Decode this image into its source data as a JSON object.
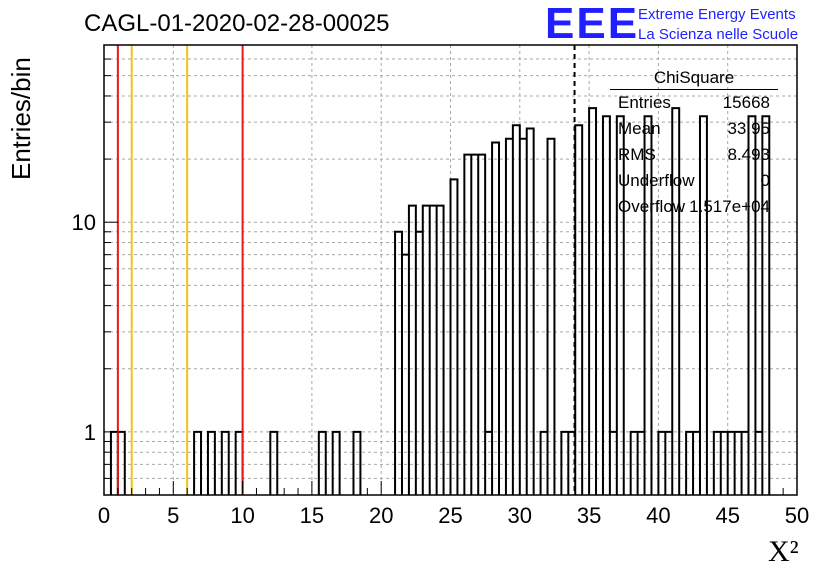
{
  "header": {
    "title": "CAGL-01-2020-02-28-00025"
  },
  "brand": {
    "logo": "EEE",
    "line1": "Extreme Energy Events",
    "line2": "La Scienza nelle Scuole"
  },
  "stats": {
    "title": "ChiSquare",
    "rows": [
      {
        "name": "Entries",
        "value": "15668"
      },
      {
        "name": "Mean",
        "value": "33.95"
      },
      {
        "name": "RMS",
        "value": "8.493"
      },
      {
        "name": "Underflow",
        "value": "0"
      },
      {
        "name": "Overflow",
        "value": "1.517e+04"
      }
    ]
  },
  "colors": {
    "red_lines": "#e8191b",
    "yellow_lines": "#f2c314",
    "histogram": "#000000",
    "grid": "#a8a8a8"
  },
  "chart_data": {
    "type": "histogram",
    "xlabel": "X²",
    "ylabel": "Entries/bin",
    "xlim": [
      0,
      50
    ],
    "ylim": [
      0.5,
      70
    ],
    "yscale": "log",
    "grid": true,
    "xticks": [
      "0",
      "5",
      "10",
      "15",
      "20",
      "25",
      "30",
      "35",
      "40",
      "45",
      "50"
    ],
    "yticks": [
      {
        "value": 1,
        "label": "1"
      },
      {
        "value": 10,
        "label": "10"
      }
    ],
    "bin_width": 0.5,
    "bins": [
      {
        "x": 0.5,
        "y": 1
      },
      {
        "x": 1.0,
        "y": 1
      },
      {
        "x": 6.5,
        "y": 1
      },
      {
        "x": 7.5,
        "y": 1
      },
      {
        "x": 8.5,
        "y": 1
      },
      {
        "x": 9.5,
        "y": 1
      },
      {
        "x": 12.0,
        "y": 1
      },
      {
        "x": 15.5,
        "y": 1
      },
      {
        "x": 16.5,
        "y": 1
      },
      {
        "x": 18.0,
        "y": 1
      },
      {
        "x": 21.0,
        "y": 9
      },
      {
        "x": 21.5,
        "y": 7
      },
      {
        "x": 22.0,
        "y": 12
      },
      {
        "x": 22.5,
        "y": 9
      },
      {
        "x": 23.0,
        "y": 12
      },
      {
        "x": 23.5,
        "y": 12
      },
      {
        "x": 24.0,
        "y": 12
      },
      {
        "x": 25.0,
        "y": 16
      },
      {
        "x": 26.0,
        "y": 21
      },
      {
        "x": 26.5,
        "y": 21
      },
      {
        "x": 27.0,
        "y": 21
      },
      {
        "x": 27.5,
        "y": 1
      },
      {
        "x": 28.0,
        "y": 24
      },
      {
        "x": 29.0,
        "y": 25
      },
      {
        "x": 29.5,
        "y": 29
      },
      {
        "x": 30.0,
        "y": 25
      },
      {
        "x": 30.5,
        "y": 28
      },
      {
        "x": 31.5,
        "y": 1
      },
      {
        "x": 32.0,
        "y": 25
      },
      {
        "x": 33.0,
        "y": 1
      },
      {
        "x": 33.5,
        "y": 1
      },
      {
        "x": 34.0,
        "y": 29
      },
      {
        "x": 35.0,
        "y": 35
      },
      {
        "x": 36.0,
        "y": 32
      },
      {
        "x": 36.5,
        "y": 1
      },
      {
        "x": 37.0,
        "y": 32
      },
      {
        "x": 38.0,
        "y": 1
      },
      {
        "x": 38.5,
        "y": 1
      },
      {
        "x": 39.0,
        "y": 32
      },
      {
        "x": 40.0,
        "y": 1
      },
      {
        "x": 40.5,
        "y": 1
      },
      {
        "x": 41.0,
        "y": 35
      },
      {
        "x": 42.0,
        "y": 1
      },
      {
        "x": 42.5,
        "y": 1
      },
      {
        "x": 43.0,
        "y": 32
      },
      {
        "x": 44.0,
        "y": 1
      },
      {
        "x": 44.5,
        "y": 1
      },
      {
        "x": 45.0,
        "y": 1
      },
      {
        "x": 45.5,
        "y": 1
      },
      {
        "x": 46.0,
        "y": 1
      },
      {
        "x": 46.5,
        "y": 32
      },
      {
        "x": 47.0,
        "y": 1
      },
      {
        "x": 47.5,
        "y": 32
      }
    ],
    "reference_lines": [
      {
        "x": 1,
        "color": "red"
      },
      {
        "x": 2,
        "color": "yellow"
      },
      {
        "x": 6,
        "color": "yellow"
      },
      {
        "x": 10,
        "color": "red"
      },
      {
        "x": 33.95,
        "color": "black",
        "style": "dashed"
      }
    ]
  }
}
